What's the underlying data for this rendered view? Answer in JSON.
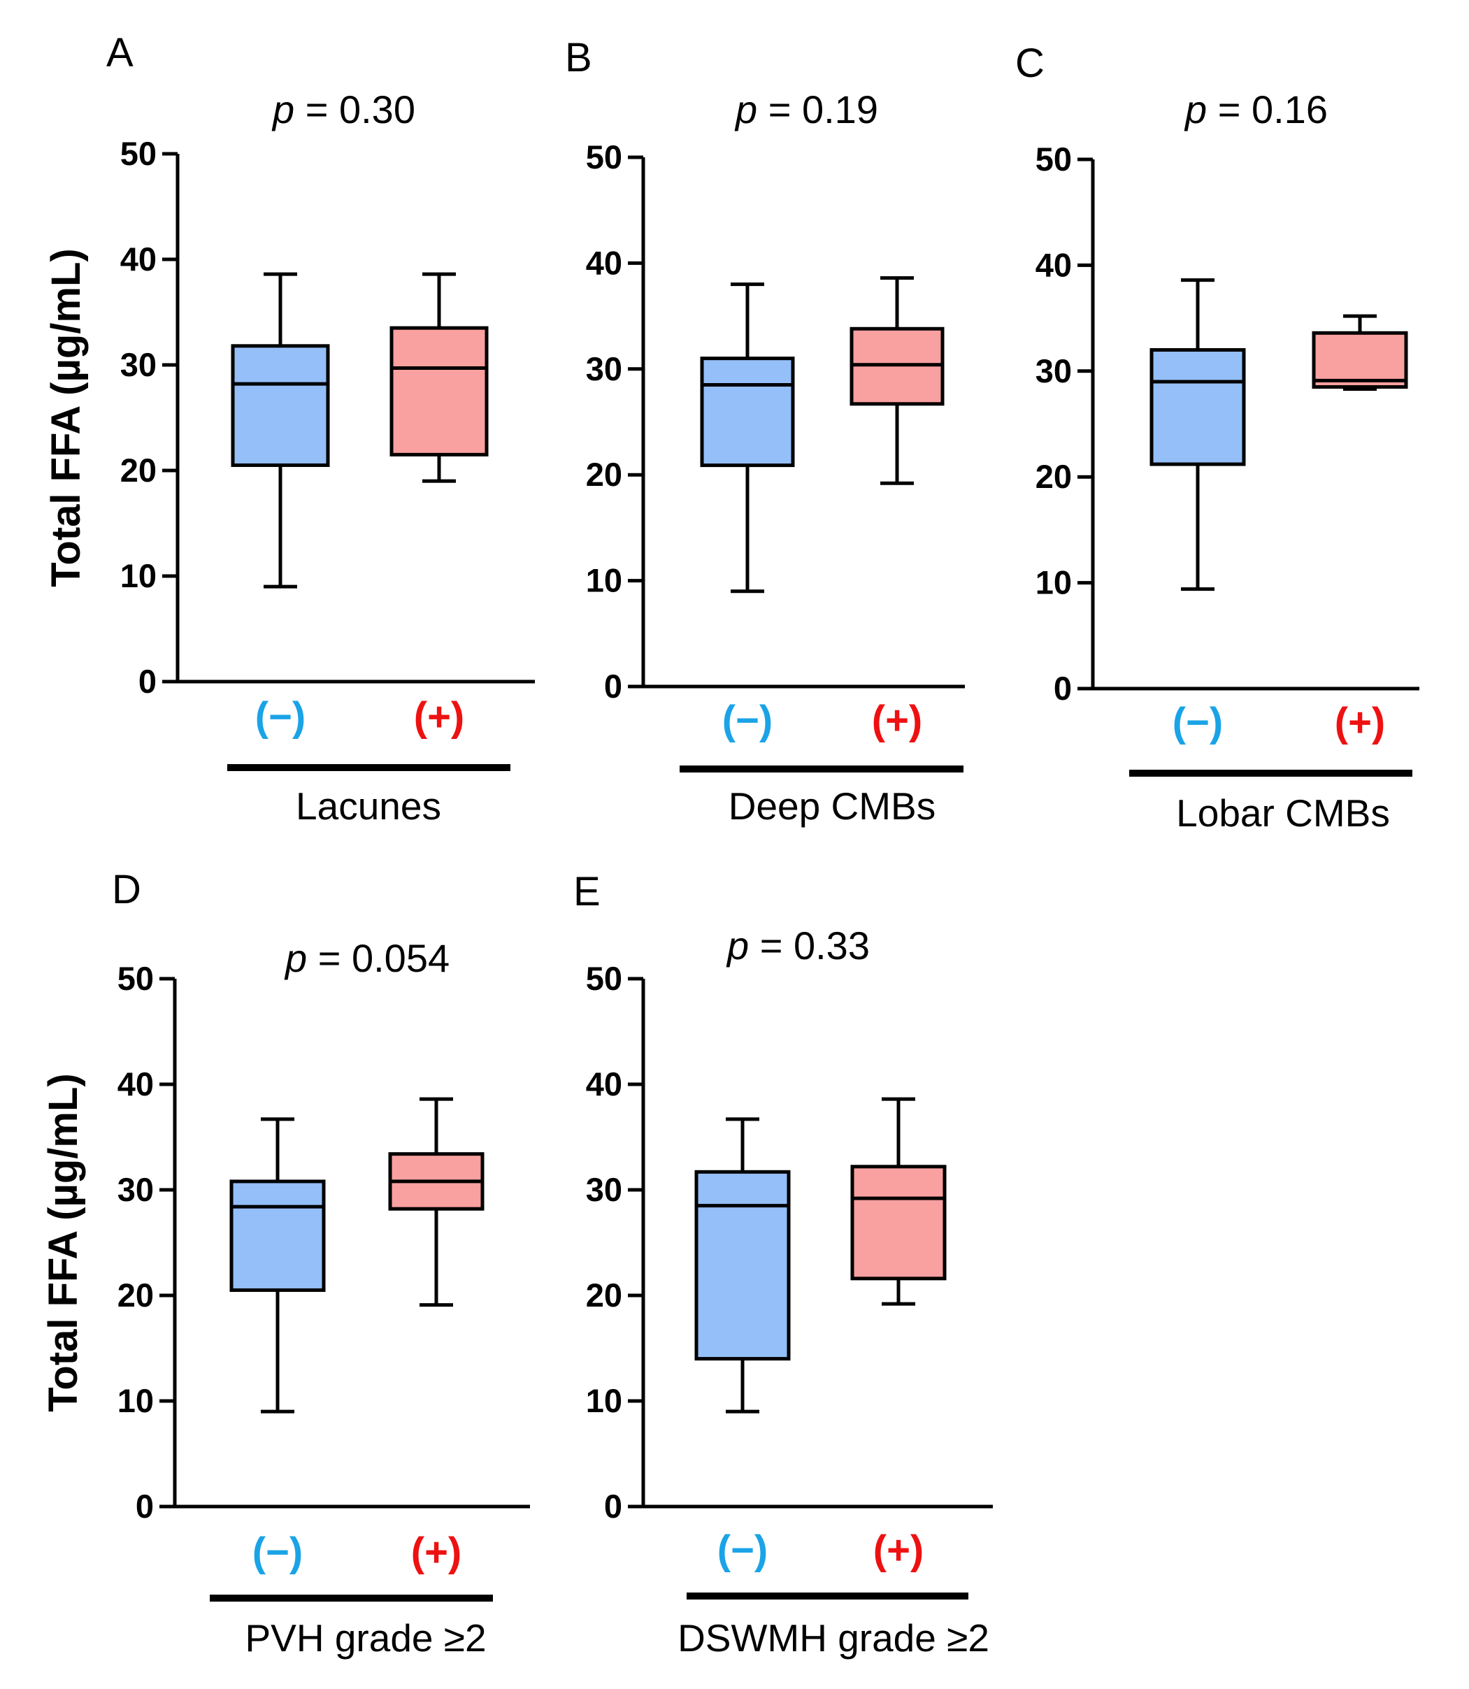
{
  "chart_data": [
    {
      "panel": "A",
      "type": "box",
      "p_label": "p",
      "p_value": "= 0.30",
      "ylabel": "Total FFA (µg/mL)",
      "ylim": [
        0,
        50
      ],
      "yticks": [
        0,
        10,
        20,
        30,
        40,
        50
      ],
      "xtitle": "Lacunes",
      "groups": [
        {
          "label": "(−)",
          "color": "#1aa3e6",
          "fill": "#94bff8",
          "min": 9,
          "q1": 20.5,
          "median": 28.2,
          "q3": 31.8,
          "max": 38.6
        },
        {
          "label": "(+)",
          "color": "#ee1111",
          "fill": "#f9a0a0",
          "min": 19.0,
          "q1": 21.5,
          "median": 29.7,
          "q3": 33.5,
          "max": 38.6
        }
      ]
    },
    {
      "panel": "B",
      "type": "box",
      "p_label": "p",
      "p_value": "= 0.19",
      "ylabel": "",
      "ylim": [
        0,
        50
      ],
      "yticks": [
        0,
        10,
        20,
        30,
        40,
        50
      ],
      "xtitle": "Deep CMBs",
      "groups": [
        {
          "label": "(−)",
          "color": "#1aa3e6",
          "fill": "#94bff8",
          "min": 9,
          "q1": 20.9,
          "median": 28.5,
          "q3": 31.0,
          "max": 38.0
        },
        {
          "label": "(+)",
          "color": "#ee1111",
          "fill": "#f9a0a0",
          "min": 19.2,
          "q1": 26.7,
          "median": 30.4,
          "q3": 33.8,
          "max": 38.6
        }
      ]
    },
    {
      "panel": "C",
      "type": "box",
      "p_label": "p",
      "p_value": "= 0.16",
      "ylabel": "",
      "ylim": [
        0,
        50
      ],
      "yticks": [
        0,
        10,
        20,
        30,
        40,
        50
      ],
      "xtitle": "Lobar CMBs",
      "groups": [
        {
          "label": "(−)",
          "color": "#1aa3e6",
          "fill": "#94bff8",
          "min": 9.4,
          "q1": 21.2,
          "median": 29.0,
          "q3": 32.0,
          "max": 38.6
        },
        {
          "label": "(+)",
          "color": "#ee1111",
          "fill": "#f9a0a0",
          "min": 28.3,
          "q1": 28.5,
          "median": 29.1,
          "q3": 33.6,
          "max": 35.2
        }
      ]
    },
    {
      "panel": "D",
      "type": "box",
      "p_label": "p",
      "p_value": "= 0.054",
      "ylabel": "Total FFA (µg/mL)",
      "ylim": [
        0,
        50
      ],
      "yticks": [
        0,
        10,
        20,
        30,
        40,
        50
      ],
      "xtitle": "PVH grade ≥2",
      "groups": [
        {
          "label": "(−)",
          "color": "#1aa3e6",
          "fill": "#94bff8",
          "min": 9,
          "q1": 20.5,
          "median": 28.4,
          "q3": 30.8,
          "max": 36.7
        },
        {
          "label": "(+)",
          "color": "#ee1111",
          "fill": "#f9a0a0",
          "min": 19.1,
          "q1": 28.2,
          "median": 30.8,
          "q3": 33.4,
          "max": 38.6
        }
      ]
    },
    {
      "panel": "E",
      "type": "box",
      "p_label": "p",
      "p_value": "= 0.33",
      "ylabel": "",
      "ylim": [
        0,
        50
      ],
      "yticks": [
        0,
        10,
        20,
        30,
        40,
        50
      ],
      "xtitle": "DSWMH grade ≥2",
      "groups": [
        {
          "label": "(−)",
          "color": "#1aa3e6",
          "fill": "#94bff8",
          "min": 9,
          "q1": 14.0,
          "median": 28.5,
          "q3": 31.7,
          "max": 36.7
        },
        {
          "label": "(+)",
          "color": "#ee1111",
          "fill": "#f9a0a0",
          "min": 19.2,
          "q1": 21.6,
          "median": 29.2,
          "q3": 32.2,
          "max": 38.6
        }
      ]
    }
  ]
}
